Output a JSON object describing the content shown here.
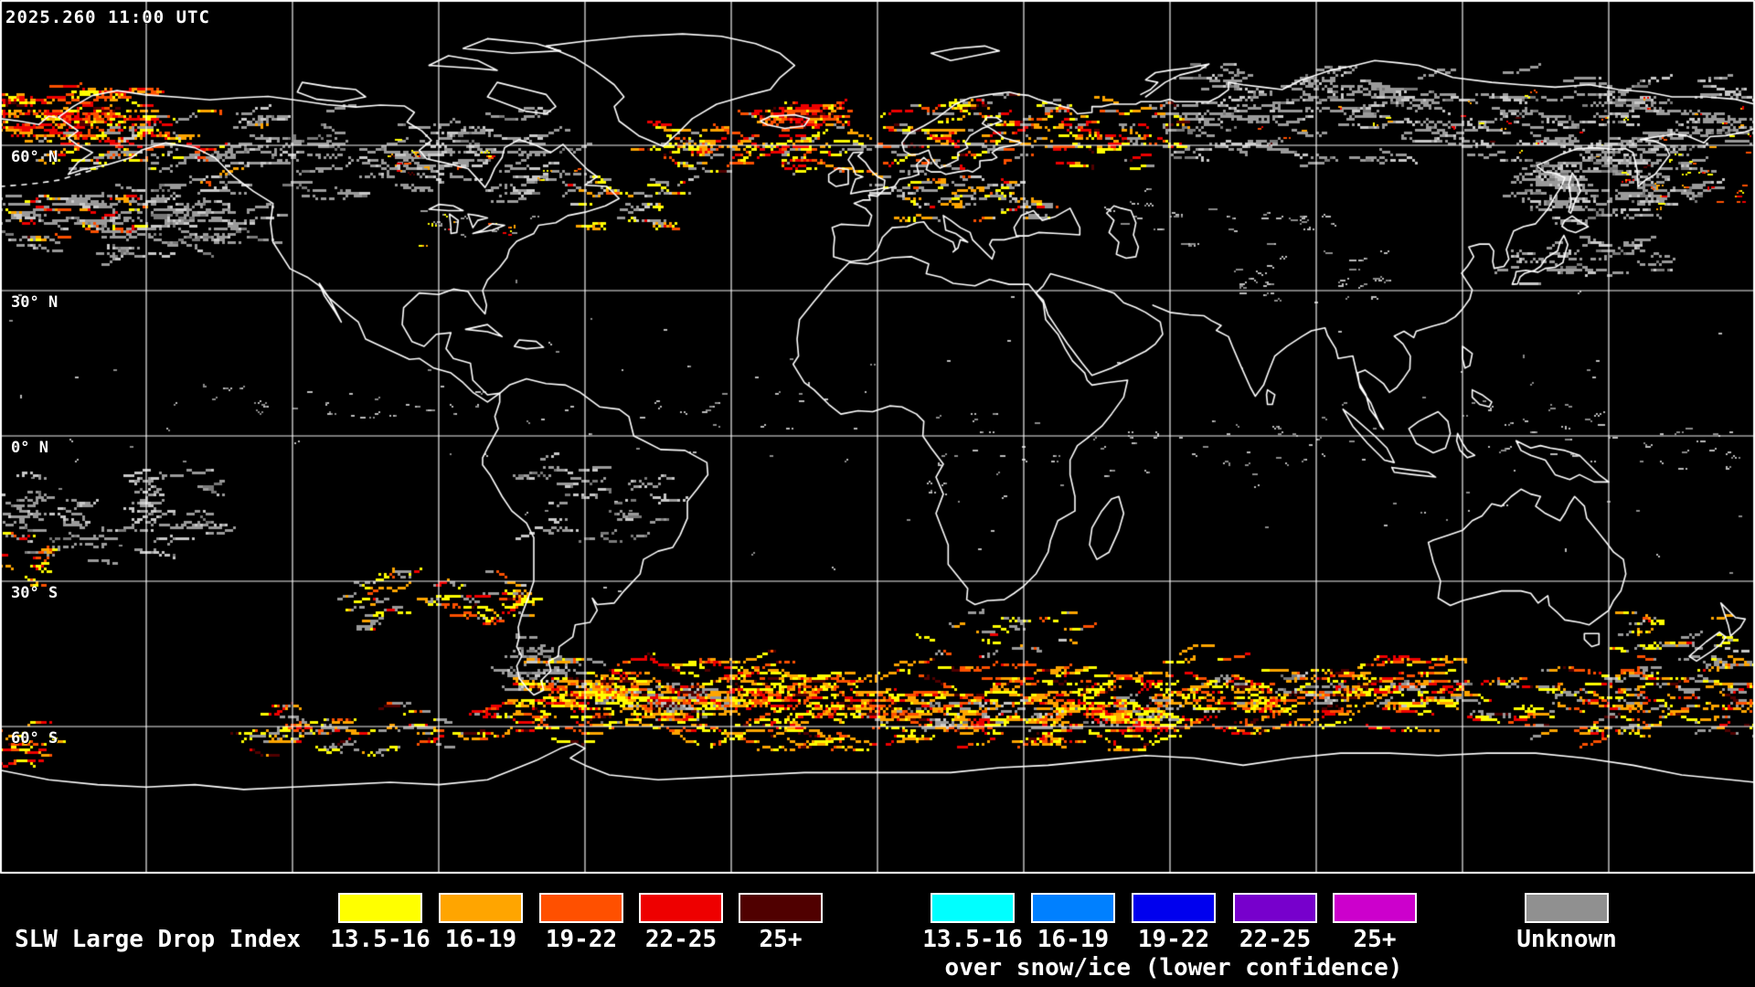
{
  "header": {
    "timestamp": "2025.260 11:00 UTC"
  },
  "map": {
    "projection": "equirectangular",
    "grid": {
      "lon_step_deg": 30,
      "lat_step_deg": 30,
      "line_color": "#ffffff",
      "background": "#000000",
      "coastline_color": "#ffffff"
    },
    "lat_labels": [
      {
        "label": "60° N",
        "lat": 60
      },
      {
        "label": "30° N",
        "lat": 30
      },
      {
        "label": "0° N",
        "lat": 0
      },
      {
        "label": "30° S",
        "lat": -30
      },
      {
        "label": "60° S",
        "lat": -60
      }
    ]
  },
  "legend": {
    "title": "SLW Large Drop Index",
    "groups": [
      {
        "name": "standard",
        "bins": [
          {
            "label": "13.5-16",
            "color": "#ffff00"
          },
          {
            "label": "16-19",
            "color": "#ffa500"
          },
          {
            "label": "19-22",
            "color": "#ff5000"
          },
          {
            "label": "22-25",
            "color": "#ee0000"
          },
          {
            "label": "25+",
            "color": "#500000"
          }
        ]
      },
      {
        "name": "snow-ice",
        "caption": "over snow/ice (lower confidence)",
        "bins": [
          {
            "label": "13.5-16",
            "color": "#00ffff"
          },
          {
            "label": "16-19",
            "color": "#0080ff"
          },
          {
            "label": "19-22",
            "color": "#0000ee"
          },
          {
            "label": "22-25",
            "color": "#7700cc"
          },
          {
            "label": "25+",
            "color": "#cc00cc"
          }
        ]
      }
    ],
    "unknown": {
      "label": "Unknown",
      "color": "#909090"
    }
  }
}
